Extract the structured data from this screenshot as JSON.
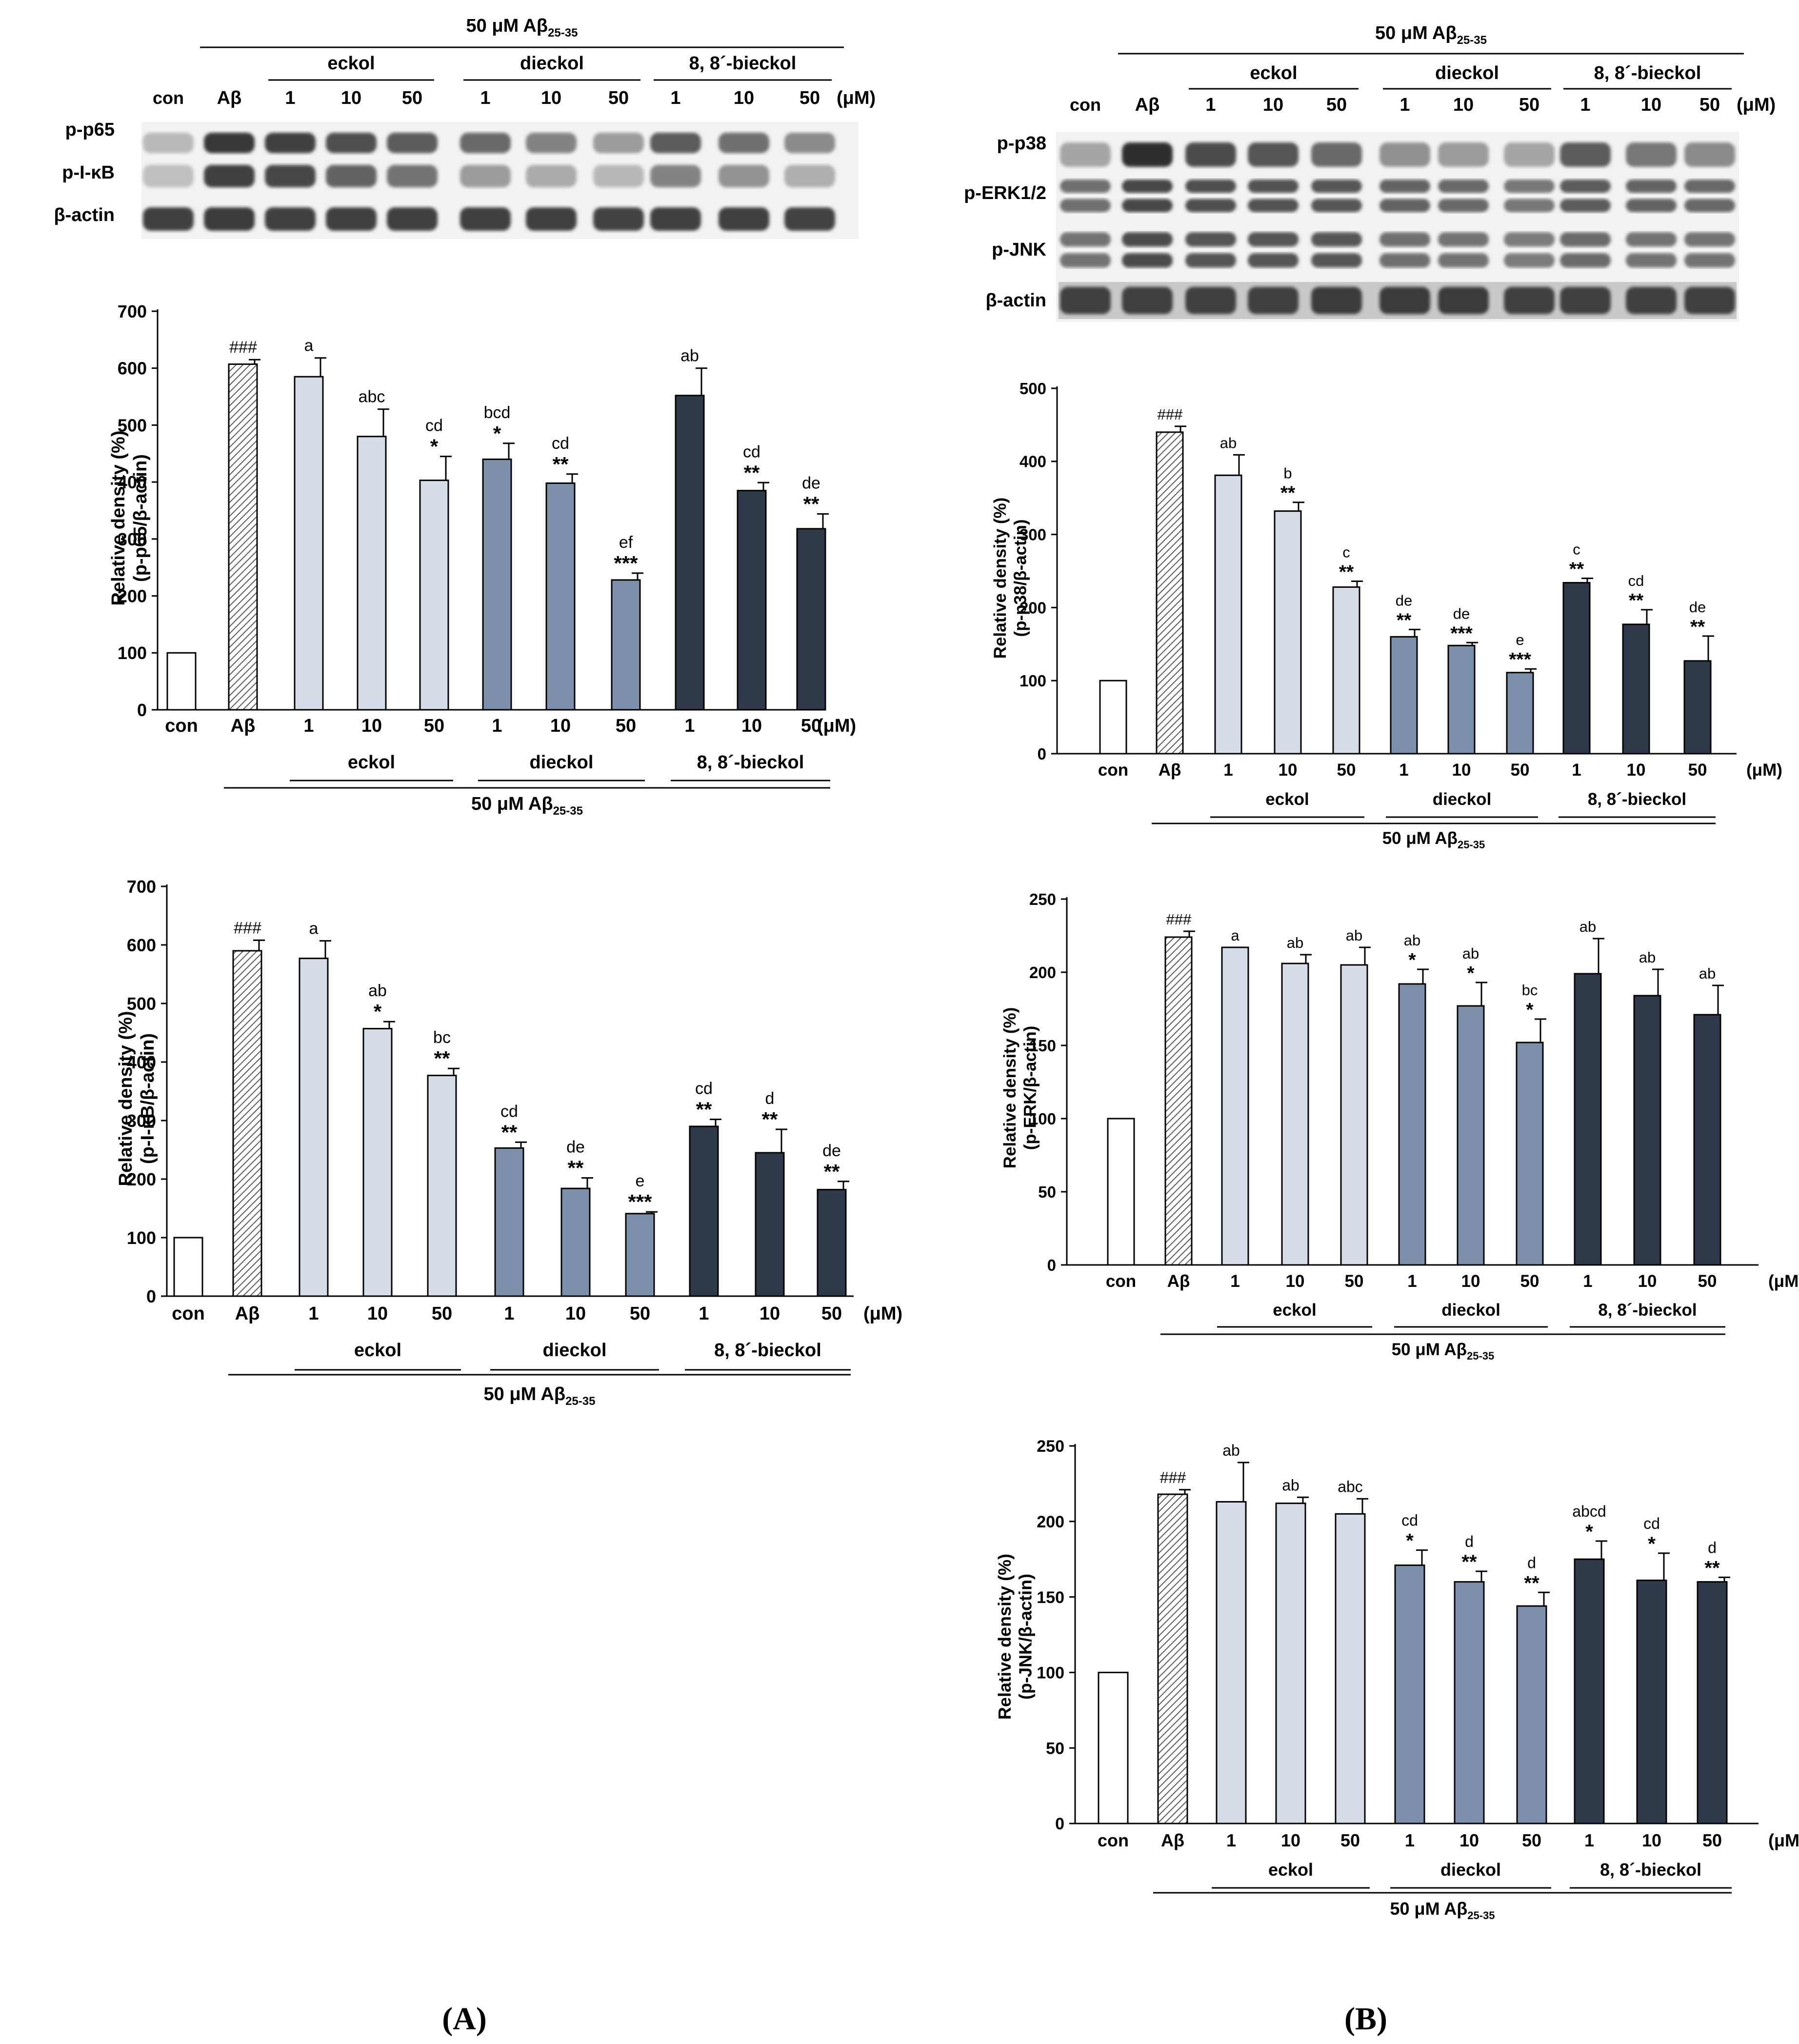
{
  "figure": {
    "panel_labels": {
      "A": "(A)",
      "B": "(B)"
    },
    "lanes": [
      "con",
      "Aβ",
      "1",
      "10",
      "50",
      "1",
      "10",
      "50",
      "1",
      "10",
      "50"
    ],
    "unit": "(μM)",
    "groups": [
      "eckol",
      "dieckol",
      "8, 8´-bieckol"
    ],
    "treatment_prefix": "50 μM Aβ",
    "treatment_sub": "25-35",
    "colors": {
      "con": "#ffffff",
      "abeta_hatch": "#5a5a5a",
      "eckol": "#d7dde8",
      "dieckol": "#7d90ab",
      "bieckol": "#2f394a",
      "stroke": "#000000"
    }
  },
  "blots": {
    "A": {
      "rows": [
        "p-p65",
        "p-I-κB",
        "β-actin"
      ]
    },
    "B": {
      "rows": [
        "p-p38",
        "p-ERK1/2",
        "p-JNK",
        "β-actin"
      ]
    }
  },
  "chart_data": [
    {
      "id": "p65",
      "panel": "A",
      "type": "bar",
      "ylabel_line1": "Relative density (%)",
      "ylabel_line2": "(p-p65/β-actin)",
      "ylim": [
        0,
        700
      ],
      "yticks": [
        0,
        100,
        200,
        300,
        400,
        500,
        600,
        700
      ],
      "categories": [
        "con",
        "Aβ",
        "1",
        "10",
        "50",
        "1",
        "10",
        "50",
        "1",
        "10",
        "50"
      ],
      "values": [
        100,
        607,
        585,
        480,
        403,
        440,
        398,
        228,
        552,
        385,
        318
      ],
      "errors": [
        0,
        8,
        33,
        48,
        42,
        28,
        16,
        12,
        48,
        14,
        26
      ],
      "letters": [
        "",
        "###",
        "a",
        "abc",
        "cd",
        "bcd",
        "cd",
        "ef",
        "ab",
        "cd",
        "de"
      ],
      "stars": [
        "",
        "",
        "",
        "",
        "*",
        "*",
        "**",
        "***",
        "",
        "**",
        "**"
      ]
    },
    {
      "id": "pikb",
      "panel": "A",
      "type": "bar",
      "ylabel_line1": "Relative density (%)",
      "ylabel_line2": "(p-I-κB/β-actin)",
      "ylim": [
        0,
        700
      ],
      "yticks": [
        0,
        100,
        200,
        300,
        400,
        500,
        600,
        700
      ],
      "categories": [
        "con",
        "Aβ",
        "1",
        "10",
        "50",
        "1",
        "10",
        "50",
        "1",
        "10",
        "50"
      ],
      "values": [
        100,
        590,
        577,
        457,
        377,
        253,
        184,
        141,
        290,
        245,
        182
      ],
      "errors": [
        0,
        18,
        30,
        12,
        12,
        10,
        18,
        3,
        12,
        40,
        14
      ],
      "letters": [
        "",
        "###",
        "a",
        "ab",
        "bc",
        "cd",
        "de",
        "e",
        "cd",
        "d",
        "de"
      ],
      "stars": [
        "",
        "",
        "",
        "*",
        "**",
        "**",
        "**",
        "***",
        "**",
        "**",
        "**"
      ]
    },
    {
      "id": "p38",
      "panel": "B",
      "type": "bar",
      "ylabel_line1": "Relative density (%)",
      "ylabel_line2": "(p-p38/β-actin)",
      "ylim": [
        0,
        500
      ],
      "yticks": [
        0,
        100,
        200,
        300,
        400,
        500
      ],
      "categories": [
        "con",
        "Aβ",
        "1",
        "10",
        "50",
        "1",
        "10",
        "50",
        "1",
        "10",
        "50"
      ],
      "values": [
        100,
        440,
        381,
        332,
        228,
        160,
        148,
        111,
        234,
        177,
        127
      ],
      "errors": [
        0,
        8,
        28,
        12,
        8,
        10,
        4,
        5,
        6,
        20,
        34
      ],
      "letters": [
        "",
        "###",
        "ab",
        "b",
        "c",
        "de",
        "de",
        "e",
        "c",
        "cd",
        "de"
      ],
      "stars": [
        "",
        "",
        "",
        "**",
        "**",
        "**",
        "***",
        "***",
        "**",
        "**",
        "**"
      ]
    },
    {
      "id": "perk",
      "panel": "B",
      "type": "bar",
      "ylabel_line1": "Relative density (%)",
      "ylabel_line2": "(p-ERK/β-actin)",
      "ylim": [
        0,
        250
      ],
      "yticks": [
        0,
        50,
        100,
        150,
        200,
        250
      ],
      "categories": [
        "con",
        "Aβ",
        "1",
        "10",
        "50",
        "1",
        "10",
        "50",
        "1",
        "10",
        "50"
      ],
      "values": [
        100,
        224,
        217,
        206,
        205,
        192,
        177,
        152,
        199,
        184,
        171
      ],
      "errors": [
        0,
        4,
        0,
        6,
        12,
        10,
        16,
        16,
        24,
        18,
        20
      ],
      "letters": [
        "",
        "###",
        "a",
        "ab",
        "ab",
        "ab",
        "ab",
        "bc",
        "ab",
        "ab",
        "ab"
      ],
      "stars": [
        "",
        "",
        "",
        "",
        "",
        "*",
        "*",
        "*",
        "",
        "",
        ""
      ]
    },
    {
      "id": "pjnk",
      "panel": "B",
      "type": "bar",
      "ylabel_line1": "Relative density (%)",
      "ylabel_line2": "(p-JNK/β-actin)",
      "ylim": [
        0,
        250
      ],
      "yticks": [
        0,
        50,
        100,
        150,
        200,
        250
      ],
      "categories": [
        "con",
        "Aβ",
        "1",
        "10",
        "50",
        "1",
        "10",
        "50",
        "1",
        "10",
        "50"
      ],
      "values": [
        100,
        218,
        213,
        212,
        205,
        171,
        160,
        144,
        175,
        161,
        160
      ],
      "errors": [
        0,
        3,
        26,
        4,
        10,
        10,
        7,
        9,
        12,
        18,
        3
      ],
      "letters": [
        "",
        "###",
        "ab",
        "ab",
        "abc",
        "cd",
        "d",
        "d",
        "abcd",
        "cd",
        "d"
      ],
      "stars": [
        "",
        "",
        "",
        "",
        "",
        "*",
        "**",
        "**",
        "*",
        "*",
        "**"
      ]
    }
  ]
}
